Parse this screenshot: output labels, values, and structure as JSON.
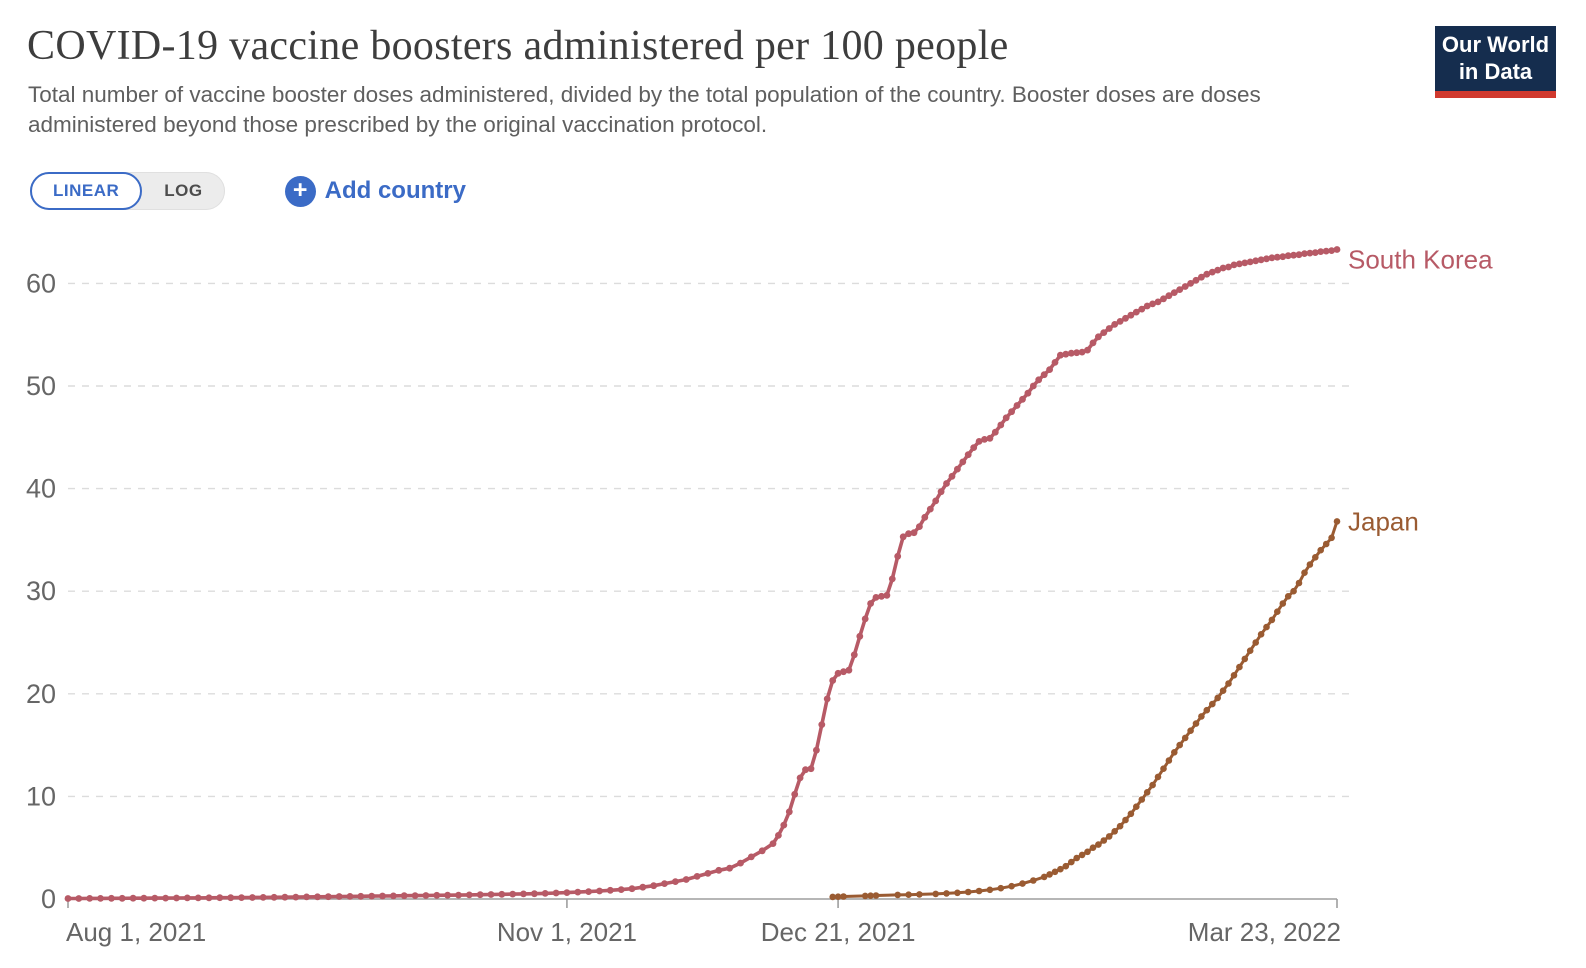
{
  "header": {
    "title": "COVID-19 vaccine boosters administered per 100 people",
    "subtitle": "Total number of vaccine booster doses administered, divided by the total population of the country. Booster doses are doses administered beyond those prescribed by the original vaccination protocol.",
    "logo": {
      "line1": "Our World",
      "line2": "in Data"
    }
  },
  "controls": {
    "scale_toggle": {
      "options": [
        "LINEAR",
        "LOG"
      ],
      "selected": "LINEAR",
      "linear_label": "LINEAR",
      "log_label": "LOG"
    },
    "add_country_label": "Add country",
    "plus_icon": "+"
  },
  "colors": {
    "accent_blue": "#3b6bc6",
    "south_korea": "#b75a66",
    "japan": "#9a5b32",
    "grid": "#dcdcdc",
    "axis": "#9e9e9e",
    "tick_label": "#666666",
    "title": "#3d3d3d",
    "subtitle": "#5f5f5f",
    "logo_navy": "#152d4e",
    "logo_red": "#d0392e"
  },
  "chart_data": {
    "type": "line",
    "title": "COVID-19 vaccine boosters administered per 100 people",
    "grid": "horizontal-dashed",
    "legend_position": "end-of-line-labels",
    "x_axis": {
      "unit": "days since Aug 1, 2021",
      "range_days": [
        0,
        234
      ],
      "ticks": [
        {
          "day": 0,
          "label": "Aug 1, 2021"
        },
        {
          "day": 92,
          "label": "Nov 1, 2021"
        },
        {
          "day": 142,
          "label": "Dec 21, 2021"
        },
        {
          "day": 234,
          "label": "Mar 23, 2022"
        }
      ]
    },
    "y_axis": {
      "range": [
        0,
        63.5
      ],
      "ticks": [
        0,
        10,
        20,
        30,
        40,
        50,
        60
      ]
    },
    "series": [
      {
        "name": "South Korea",
        "color": "#b75a66",
        "points": [
          [
            0,
            0.05
          ],
          [
            2,
            0.05
          ],
          [
            4,
            0.06
          ],
          [
            6,
            0.06
          ],
          [
            8,
            0.07
          ],
          [
            10,
            0.07
          ],
          [
            12,
            0.08
          ],
          [
            14,
            0.08
          ],
          [
            16,
            0.09
          ],
          [
            18,
            0.09
          ],
          [
            20,
            0.1
          ],
          [
            22,
            0.11
          ],
          [
            24,
            0.11
          ],
          [
            26,
            0.12
          ],
          [
            28,
            0.13
          ],
          [
            30,
            0.13
          ],
          [
            32,
            0.14
          ],
          [
            34,
            0.15
          ],
          [
            36,
            0.16
          ],
          [
            38,
            0.17
          ],
          [
            40,
            0.18
          ],
          [
            42,
            0.19
          ],
          [
            44,
            0.2
          ],
          [
            46,
            0.21
          ],
          [
            48,
            0.22
          ],
          [
            50,
            0.24
          ],
          [
            52,
            0.25
          ],
          [
            54,
            0.26
          ],
          [
            56,
            0.28
          ],
          [
            58,
            0.29
          ],
          [
            60,
            0.3
          ],
          [
            62,
            0.32
          ],
          [
            64,
            0.33
          ],
          [
            66,
            0.34
          ],
          [
            68,
            0.36
          ],
          [
            70,
            0.37
          ],
          [
            72,
            0.38
          ],
          [
            74,
            0.4
          ],
          [
            76,
            0.42
          ],
          [
            78,
            0.44
          ],
          [
            80,
            0.46
          ],
          [
            82,
            0.48
          ],
          [
            84,
            0.5
          ],
          [
            86,
            0.52
          ],
          [
            88,
            0.55
          ],
          [
            90,
            0.58
          ],
          [
            92,
            0.62
          ],
          [
            94,
            0.67
          ],
          [
            96,
            0.72
          ],
          [
            98,
            0.78
          ],
          [
            100,
            0.85
          ],
          [
            102,
            0.92
          ],
          [
            104,
            1.0
          ],
          [
            106,
            1.15
          ],
          [
            108,
            1.3
          ],
          [
            110,
            1.5
          ],
          [
            112,
            1.7
          ],
          [
            114,
            1.9
          ],
          [
            116,
            2.2
          ],
          [
            118,
            2.5
          ],
          [
            120,
            2.8
          ],
          [
            122,
            3.0
          ],
          [
            124,
            3.5
          ],
          [
            126,
            4.1
          ],
          [
            128,
            4.7
          ],
          [
            130,
            5.4
          ],
          [
            131,
            6.2
          ],
          [
            132,
            7.2
          ],
          [
            133,
            8.5
          ],
          [
            134,
            10.2
          ],
          [
            135,
            11.8
          ],
          [
            136,
            12.6
          ],
          [
            137,
            12.7
          ],
          [
            138,
            14.5
          ],
          [
            139,
            17.0
          ],
          [
            140,
            19.5
          ],
          [
            141,
            21.3
          ],
          [
            142,
            22.0
          ],
          [
            143,
            22.15
          ],
          [
            144,
            22.3
          ],
          [
            145,
            23.8
          ],
          [
            146,
            25.6
          ],
          [
            147,
            27.3
          ],
          [
            148,
            28.8
          ],
          [
            149,
            29.4
          ],
          [
            150,
            29.5
          ],
          [
            151,
            29.6
          ],
          [
            152,
            31.2
          ],
          [
            153,
            33.4
          ],
          [
            154,
            35.3
          ],
          [
            155,
            35.6
          ],
          [
            156,
            35.7
          ],
          [
            157,
            36.3
          ],
          [
            158,
            37.2
          ],
          [
            159,
            38.0
          ],
          [
            160,
            38.8
          ],
          [
            161,
            39.7
          ],
          [
            162,
            40.5
          ],
          [
            163,
            41.2
          ],
          [
            164,
            41.9
          ],
          [
            165,
            42.6
          ],
          [
            166,
            43.3
          ],
          [
            167,
            44.0
          ],
          [
            168,
            44.6
          ],
          [
            169,
            44.8
          ],
          [
            170,
            44.9
          ],
          [
            171,
            45.5
          ],
          [
            172,
            46.2
          ],
          [
            173,
            46.9
          ],
          [
            174,
            47.5
          ],
          [
            175,
            48.1
          ],
          [
            176,
            48.7
          ],
          [
            177,
            49.3
          ],
          [
            178,
            50.0
          ],
          [
            179,
            50.6
          ],
          [
            180,
            51.1
          ],
          [
            181,
            51.6
          ],
          [
            182,
            52.3
          ],
          [
            183,
            53.0
          ],
          [
            184,
            53.1
          ],
          [
            185,
            53.2
          ],
          [
            186,
            53.25
          ],
          [
            187,
            53.3
          ],
          [
            188,
            53.5
          ],
          [
            189,
            54.2
          ],
          [
            190,
            54.8
          ],
          [
            191,
            55.2
          ],
          [
            192,
            55.6
          ],
          [
            193,
            56.0
          ],
          [
            194,
            56.3
          ],
          [
            195,
            56.6
          ],
          [
            196,
            56.9
          ],
          [
            197,
            57.2
          ],
          [
            198,
            57.5
          ],
          [
            199,
            57.8
          ],
          [
            200,
            58.0
          ],
          [
            201,
            58.2
          ],
          [
            202,
            58.5
          ],
          [
            203,
            58.8
          ],
          [
            204,
            59.1
          ],
          [
            205,
            59.4
          ],
          [
            206,
            59.7
          ],
          [
            207,
            60.0
          ],
          [
            208,
            60.3
          ],
          [
            209,
            60.6
          ],
          [
            210,
            60.9
          ],
          [
            211,
            61.1
          ],
          [
            212,
            61.3
          ],
          [
            213,
            61.5
          ],
          [
            214,
            61.6
          ],
          [
            215,
            61.8
          ],
          [
            216,
            61.9
          ],
          [
            217,
            62.0
          ],
          [
            218,
            62.1
          ],
          [
            219,
            62.2
          ],
          [
            220,
            62.3
          ],
          [
            221,
            62.4
          ],
          [
            222,
            62.5
          ],
          [
            223,
            62.55
          ],
          [
            224,
            62.6
          ],
          [
            225,
            62.7
          ],
          [
            226,
            62.75
          ],
          [
            227,
            62.8
          ],
          [
            228,
            62.9
          ],
          [
            229,
            62.95
          ],
          [
            230,
            63.0
          ],
          [
            231,
            63.1
          ],
          [
            232,
            63.15
          ],
          [
            233,
            63.2
          ],
          [
            234,
            63.3
          ]
        ]
      },
      {
        "name": "Japan",
        "color": "#9a5b32",
        "points": [
          [
            141,
            0.2
          ],
          [
            142,
            0.22
          ],
          [
            143,
            0.24
          ],
          [
            147,
            0.3
          ],
          [
            148,
            0.32
          ],
          [
            149,
            0.34
          ],
          [
            153,
            0.4
          ],
          [
            155,
            0.42
          ],
          [
            157,
            0.45
          ],
          [
            160,
            0.5
          ],
          [
            162,
            0.55
          ],
          [
            164,
            0.6
          ],
          [
            166,
            0.68
          ],
          [
            168,
            0.78
          ],
          [
            170,
            0.9
          ],
          [
            172,
            1.05
          ],
          [
            174,
            1.25
          ],
          [
            176,
            1.5
          ],
          [
            178,
            1.8
          ],
          [
            180,
            2.15
          ],
          [
            181,
            2.4
          ],
          [
            182,
            2.65
          ],
          [
            183,
            2.9
          ],
          [
            184,
            3.2
          ],
          [
            185,
            3.6
          ],
          [
            186,
            4.0
          ],
          [
            187,
            4.3
          ],
          [
            188,
            4.6
          ],
          [
            189,
            5.0
          ],
          [
            190,
            5.3
          ],
          [
            191,
            5.7
          ],
          [
            192,
            6.1
          ],
          [
            193,
            6.6
          ],
          [
            194,
            7.1
          ],
          [
            195,
            7.7
          ],
          [
            196,
            8.3
          ],
          [
            197,
            9.0
          ],
          [
            198,
            9.7
          ],
          [
            199,
            10.4
          ],
          [
            200,
            11.1
          ],
          [
            201,
            11.9
          ],
          [
            202,
            12.7
          ],
          [
            203,
            13.5
          ],
          [
            204,
            14.3
          ],
          [
            205,
            15.0
          ],
          [
            206,
            15.7
          ],
          [
            207,
            16.4
          ],
          [
            208,
            17.1
          ],
          [
            209,
            17.8
          ],
          [
            210,
            18.4
          ],
          [
            211,
            19.0
          ],
          [
            212,
            19.6
          ],
          [
            213,
            20.3
          ],
          [
            214,
            21.0
          ],
          [
            215,
            21.8
          ],
          [
            216,
            22.6
          ],
          [
            217,
            23.4
          ],
          [
            218,
            24.2
          ],
          [
            219,
            25.0
          ],
          [
            220,
            25.8
          ],
          [
            221,
            26.5
          ],
          [
            222,
            27.2
          ],
          [
            223,
            28.0
          ],
          [
            224,
            28.8
          ],
          [
            225,
            29.5
          ],
          [
            226,
            30.0
          ],
          [
            227,
            30.8
          ],
          [
            228,
            31.8
          ],
          [
            229,
            32.6
          ],
          [
            230,
            33.3
          ],
          [
            231,
            34.0
          ],
          [
            232,
            34.6
          ],
          [
            233,
            35.2
          ],
          [
            234,
            36.8
          ]
        ]
      }
    ]
  }
}
